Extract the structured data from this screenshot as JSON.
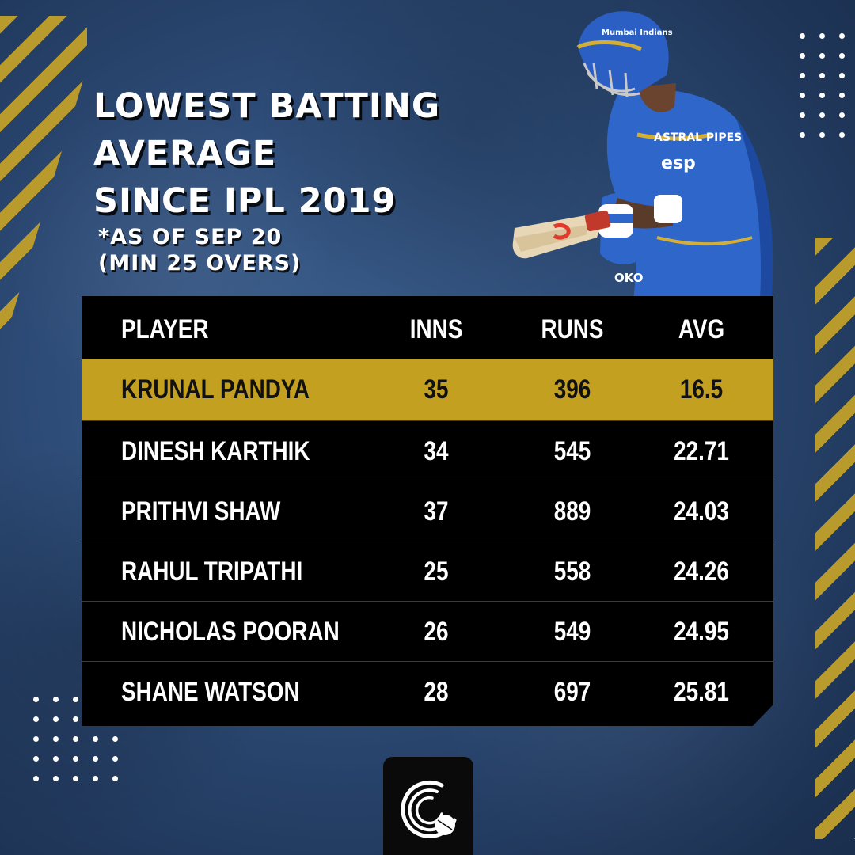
{
  "title_lines": [
    "LOWEST BATTING",
    "AVERAGE",
    "SINCE IPL 2019"
  ],
  "subtitle_lines": [
    "*AS OF SEP 20",
    "(MIN 25 OVERS)"
  ],
  "table": {
    "headers": {
      "player": "PLAYER",
      "inns": "INNS",
      "runs": "RUNS",
      "avg": "AVG"
    },
    "rows": [
      {
        "player": "KRUNAL PANDYA",
        "inns": "35",
        "runs": "396",
        "avg": "16.5"
      },
      {
        "player": "DINESH KARTHIK",
        "inns": "34",
        "runs": "545",
        "avg": "22.71"
      },
      {
        "player": "PRITHVI SHAW",
        "inns": "37",
        "runs": "889",
        "avg": "24.03"
      },
      {
        "player": "RAHUL TRIPATHI",
        "inns": "25",
        "runs": "558",
        "avg": "24.26"
      },
      {
        "player": "NICHOLAS POORAN",
        "inns": "26",
        "runs": "549",
        "avg": "24.95"
      },
      {
        "player": "SHANE WATSON",
        "inns": "28",
        "runs": "697",
        "avg": "25.81"
      }
    ]
  },
  "jersey_text": {
    "sponsor": "ASTRAL PIPES",
    "chest": "esp",
    "helmet": "Mumbai Indians",
    "sleeve": "OKO"
  },
  "colors": {
    "gold": "#c4a020",
    "navy": "#2c4a75",
    "table_bg": "#000000",
    "jersey": "#2f66c9"
  },
  "logo": {
    "icon": "cricket-ball-logo-icon"
  }
}
